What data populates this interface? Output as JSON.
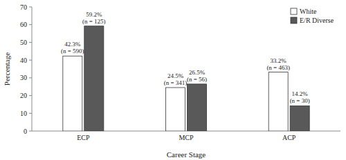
{
  "chart_data": {
    "type": "bar",
    "x_label": "Career Stage",
    "y_label": "Percentage",
    "categories": [
      "ECP",
      "MCP",
      "ACP"
    ],
    "series": [
      {
        "name": "White",
        "color": "#ffffff",
        "values": [
          42.3,
          24.5,
          33.2
        ],
        "value_labels": [
          "42.3%",
          "24.5%",
          "33.2%"
        ],
        "n_labels": [
          "(n = 590)",
          "(n = 341)",
          "(n = 463)"
        ]
      },
      {
        "name": "E/R Diverse",
        "color": "#595959",
        "values": [
          59.2,
          26.5,
          14.2
        ],
        "value_labels": [
          "59.2%",
          "26.5%",
          "14.2%"
        ],
        "n_labels": [
          "(n = 125)",
          "(n = 56)",
          "(n = 30)"
        ]
      }
    ],
    "ylim": [
      0,
      70
    ],
    "yticks": [
      0,
      10,
      20,
      30,
      40,
      50,
      60,
      70
    ],
    "grid": false,
    "legend": "upper right",
    "data_labels": true
  }
}
